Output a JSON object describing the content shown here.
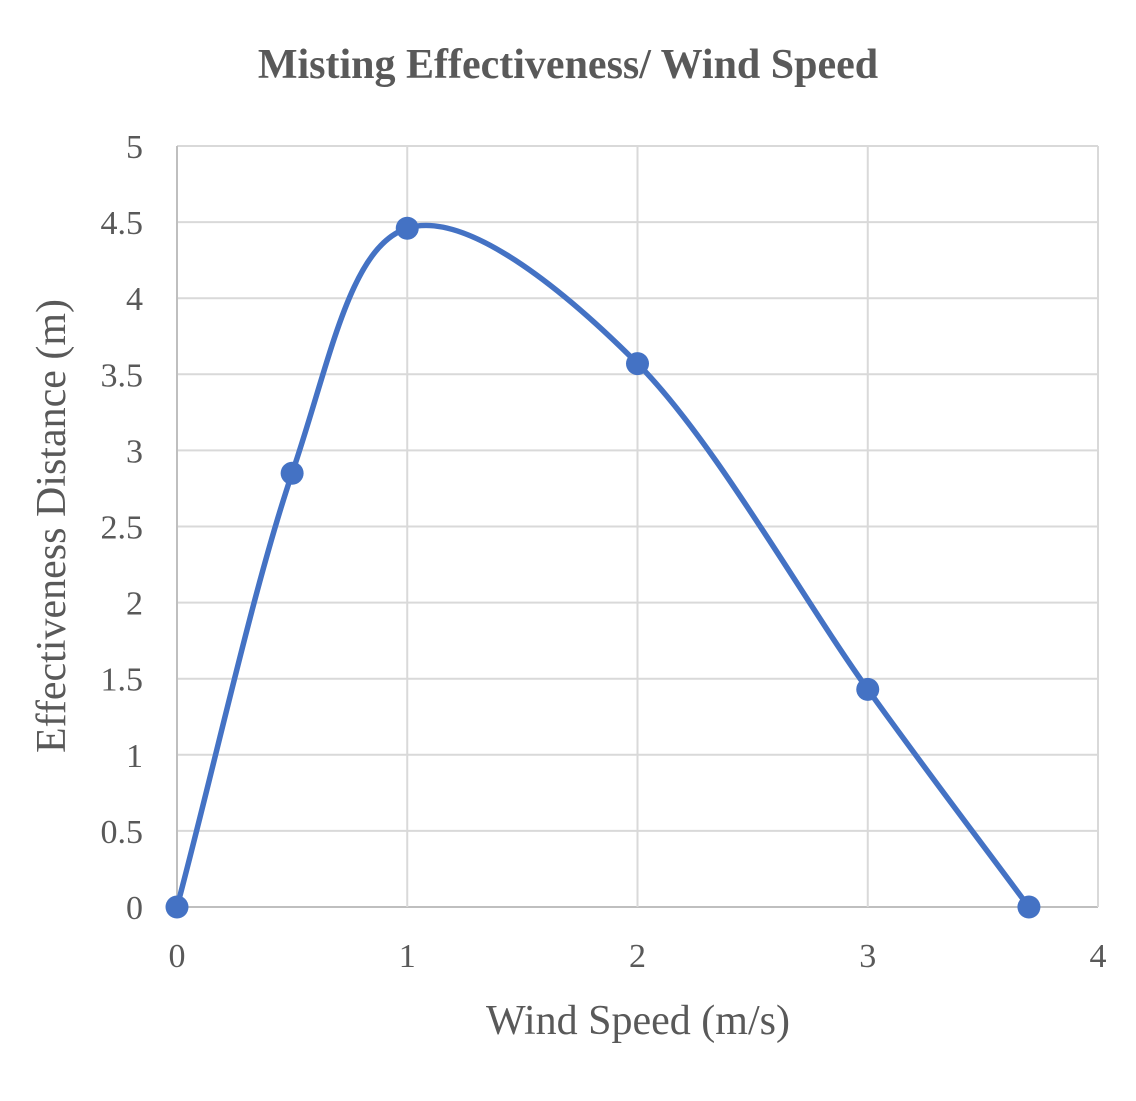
{
  "chart_data": {
    "type": "scatter",
    "title": "Misting Effectiveness/ Wind Speed",
    "xlabel": "Wind Speed (m/s)",
    "ylabel": "Effectiveness Distance (m)",
    "xlim": [
      0,
      4
    ],
    "ylim": [
      0,
      5
    ],
    "x_ticks": [
      "0",
      "1",
      "2",
      "3",
      "4"
    ],
    "y_ticks": [
      "0",
      "0.5",
      "1",
      "1.5",
      "2",
      "2.5",
      "3",
      "3.5",
      "4",
      "4.5",
      "5"
    ],
    "grid": true,
    "smoothed_line": true,
    "series": [
      {
        "color": "#4472c4",
        "x": [
          0,
          0.5,
          1,
          2,
          3,
          3.7
        ],
        "y": [
          0,
          2.85,
          4.46,
          3.57,
          1.43,
          0
        ]
      }
    ]
  }
}
